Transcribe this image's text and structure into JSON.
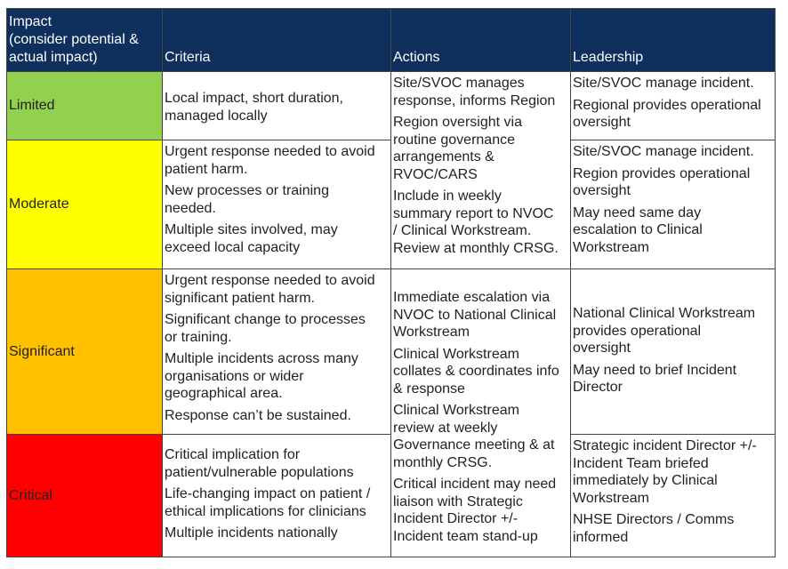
{
  "header": {
    "impact": "Impact\n(consider potential &\nactual impact)",
    "criteria": "Criteria",
    "actions": "Actions",
    "leadership": "Leadership"
  },
  "rows": [
    {
      "level": "Limited",
      "color": "#92d050",
      "criteria": [
        "Local impact, short duration,\nmanaged locally"
      ],
      "leadership": [
        "Site/SVOC manage incident.",
        "Regional provides operational\noversight"
      ]
    },
    {
      "level": "Moderate",
      "color": "#ffff00",
      "criteria": [
        "Urgent response needed to avoid\npatient harm.",
        "New processes or training\nneeded.",
        "Multiple sites involved, may\nexceed local capacity"
      ],
      "leadership": [
        "Site/SVOC manage incident.",
        "Region provides operational\noversight",
        "May need same day\nescalation to Clinical\nWorkstream"
      ]
    },
    {
      "level": "Significant",
      "color": "#ffc000",
      "criteria": [
        "Urgent response needed to avoid\nsignificant patient harm.",
        "Significant change to processes\nor training.",
        "Multiple incidents across many\norganisations or wider\ngeographical area.",
        "Response can’t be sustained."
      ],
      "leadership": [
        "National Clinical Workstream\nprovides operational\noversight",
        "May need to brief Incident\nDirector"
      ]
    },
    {
      "level": "Critical",
      "color": "#ff0000",
      "criteria": [
        "Critical implication for\npatient/vulnerable populations",
        "Life-changing impact on patient /\nethical implications for clinicians",
        "Multiple incidents nationally"
      ],
      "leadership": [
        "Strategic incident Director +/-\nIncident Team briefed\nimmediately by Clinical\nWorkstream",
        "NHSE Directors / Comms\ninformed"
      ]
    }
  ],
  "actions_upper": [
    "Site/SVOC manages\nresponse, informs Region",
    "Region oversight via\nroutine governance\narrangements &\nRVOC/CARS",
    "Include in weekly\nsummary report to NVOC\n/ Clinical Workstream.\nReview at monthly CRSG."
  ],
  "actions_lower": [
    "Immediate escalation via\nNVOC to National Clinical\nWorkstream",
    "Clinical Workstream\ncollates & coordinates info\n& response",
    "Clinical Workstream\nreview at weekly\nGovernance meeting & at\nmonthly CRSG.",
    "Critical incident may need\nliaison with Strategic\nIncident Director +/-\nIncident team stand-up"
  ]
}
